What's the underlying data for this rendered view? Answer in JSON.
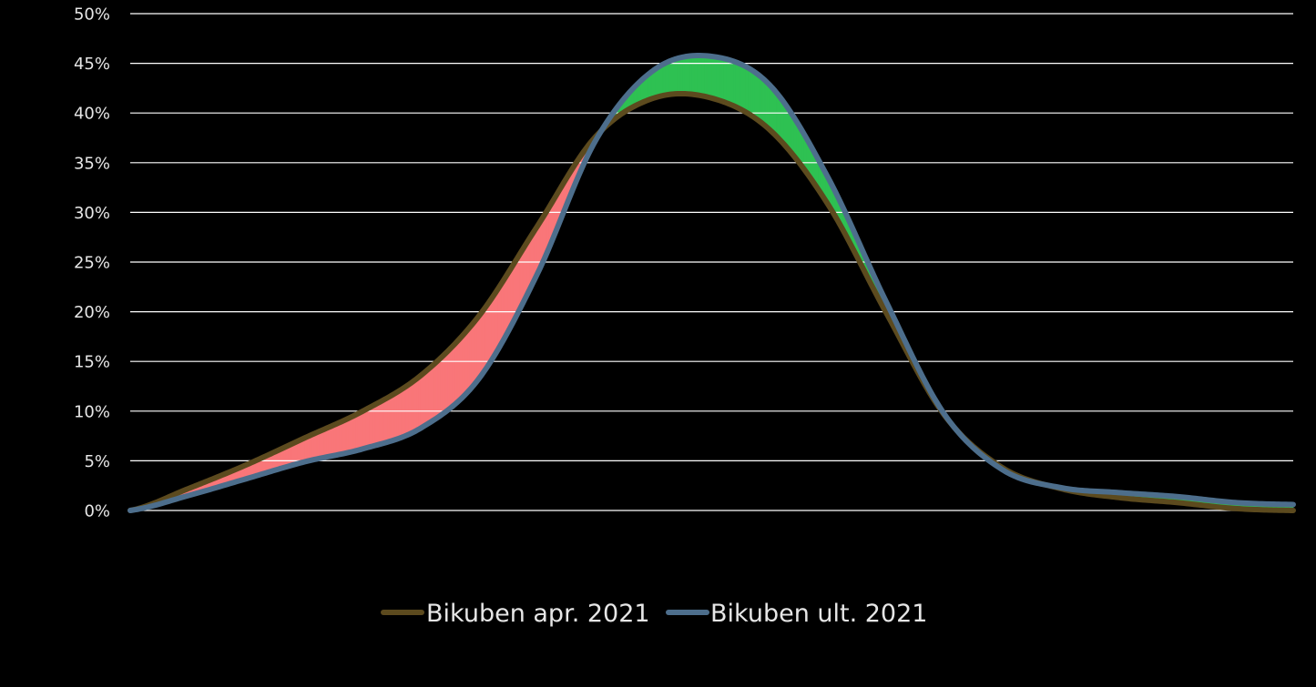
{
  "chart_data": {
    "type": "area",
    "title": "",
    "xlabel": "",
    "ylabel": "",
    "ylim": [
      0,
      50
    ],
    "y_ticks": [
      "0%",
      "5%",
      "10%",
      "15%",
      "20%",
      "25%",
      "30%",
      "35%",
      "40%",
      "45%",
      "50%"
    ],
    "y_tick_values": [
      0,
      5,
      10,
      15,
      20,
      25,
      30,
      35,
      40,
      45,
      50
    ],
    "x_ticks": [],
    "grid": true,
    "legend_position": "bottom-center",
    "x": [
      0,
      0.05,
      0.1,
      0.15,
      0.2,
      0.25,
      0.3,
      0.35,
      0.4,
      0.45,
      0.5,
      0.55,
      0.6,
      0.65,
      0.7,
      0.75,
      0.8,
      0.85,
      0.9,
      0.95,
      1.0
    ],
    "series": [
      {
        "name": "Bikuben apr. 2021",
        "color": "#5c4a1e",
        "values": [
          0,
          2.2,
          4.6,
          7.3,
          10.0,
          13.6,
          19.6,
          28.6,
          37.6,
          41.5,
          41.5,
          38.3,
          30.8,
          19.9,
          9.6,
          4.3,
          2.2,
          1.3,
          0.8,
          0.2,
          0
        ]
      },
      {
        "name": "Bikuben ult. 2021",
        "color": "#4d6e8c",
        "values": [
          0,
          1.5,
          3.2,
          4.9,
          6.2,
          8.3,
          13.3,
          23.8,
          37.2,
          44.3,
          45.7,
          42.8,
          33.5,
          21.0,
          9.7,
          4.1,
          2.3,
          1.8,
          1.4,
          0.8,
          0.6
        ]
      }
    ],
    "fill_between": {
      "above_color": "#2ec152",
      "below_color": "#f97679"
    }
  }
}
